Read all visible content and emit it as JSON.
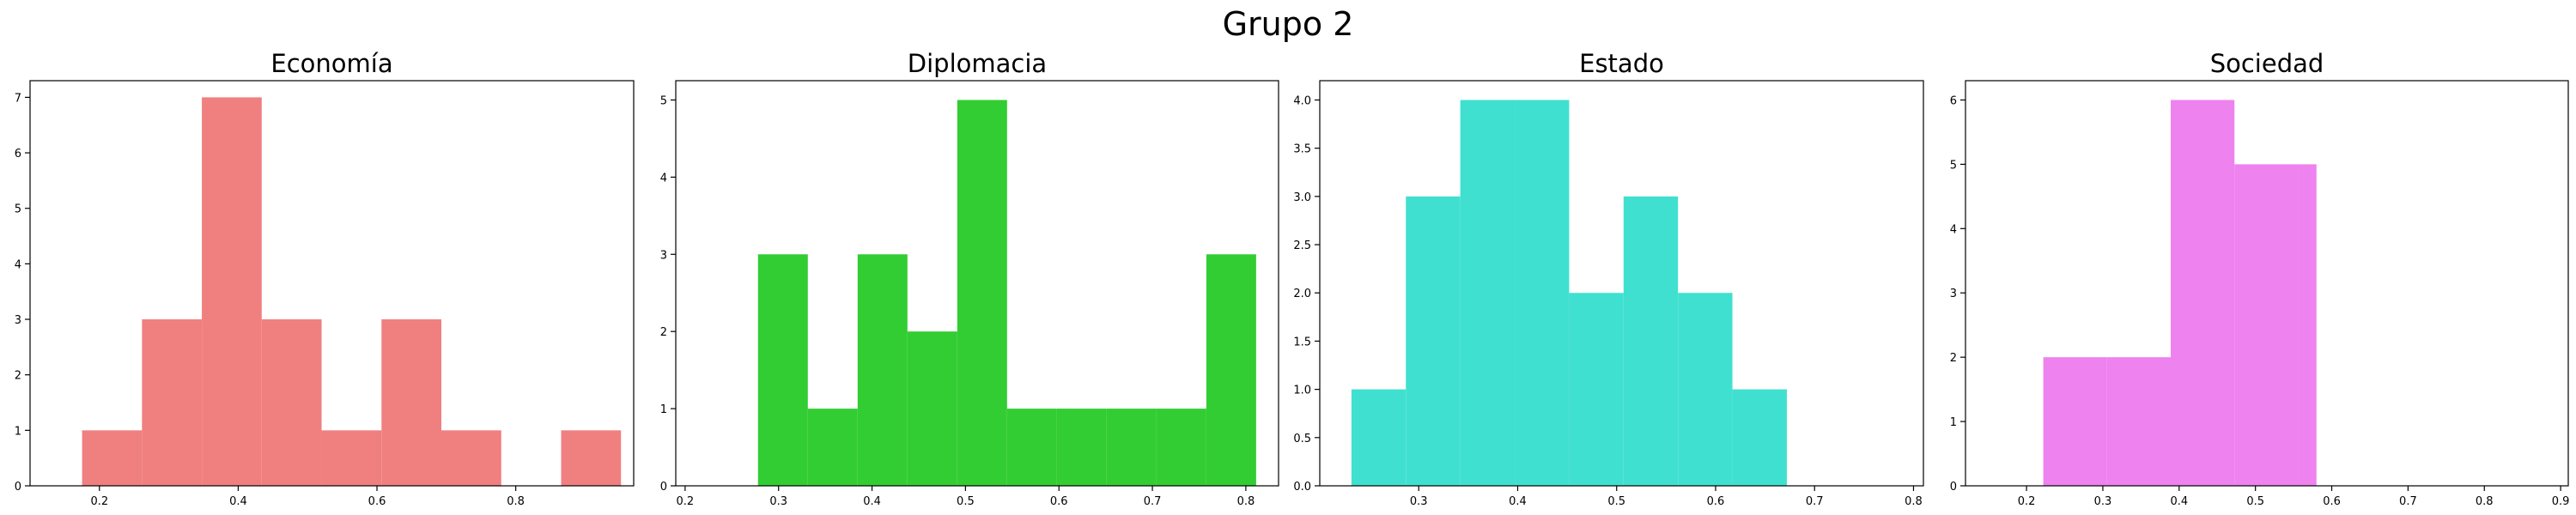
{
  "title": "Grupo 2",
  "chart_data": [
    {
      "type": "bar",
      "subtype": "histogram",
      "title": "Economía",
      "color": "#f08080",
      "xlim": [
        0.1,
        0.97
      ],
      "ylim": [
        0,
        7.3
      ],
      "xticks": [
        0.2,
        0.4,
        0.6,
        0.8
      ],
      "xtick_labels": [
        "0.2",
        "0.4",
        "0.6",
        "0.8"
      ],
      "yticks": [
        0,
        1,
        2,
        3,
        4,
        5,
        6,
        7
      ],
      "ytick_labels": [
        "0",
        "1",
        "2",
        "3",
        "4",
        "5",
        "6",
        "7"
      ],
      "bin_edges": [
        0.175,
        0.2613,
        0.3476,
        0.4339,
        0.5202,
        0.6065,
        0.6928,
        0.7791,
        0.8654,
        0.9517
      ],
      "values": [
        1,
        3,
        7,
        3,
        1,
        3,
        1,
        0,
        1
      ]
    },
    {
      "type": "bar",
      "subtype": "histogram",
      "title": "Diplomacia",
      "color": "#32cd32",
      "xlim": [
        0.19,
        0.835
      ],
      "ylim": [
        0,
        5.25
      ],
      "xticks": [
        0.2,
        0.3,
        0.4,
        0.5,
        0.6,
        0.7,
        0.8
      ],
      "xtick_labels": [
        "0.2",
        "0.3",
        "0.4",
        "0.5",
        "0.6",
        "0.7",
        "0.8"
      ],
      "yticks": [
        0,
        1,
        2,
        3,
        4,
        5
      ],
      "ytick_labels": [
        "0",
        "1",
        "2",
        "3",
        "4",
        "5"
      ],
      "bin_edges": [
        0.278,
        0.3313,
        0.3846,
        0.4379,
        0.4912,
        0.5445,
        0.5978,
        0.6511,
        0.7044,
        0.7577,
        0.811
      ],
      "values": [
        3,
        1,
        3,
        2,
        5,
        1,
        1,
        1,
        1,
        3
      ]
    },
    {
      "type": "bar",
      "subtype": "histogram",
      "title": "Estado",
      "color": "#40e0d0",
      "xlim": [
        0.2,
        0.81
      ],
      "ylim": [
        0,
        4.2
      ],
      "xticks": [
        0.3,
        0.4,
        0.5,
        0.6,
        0.7,
        0.8
      ],
      "xtick_labels": [
        "0.3",
        "0.4",
        "0.5",
        "0.6",
        "0.7",
        "0.8"
      ],
      "yticks": [
        0,
        0.5,
        1.0,
        1.5,
        2.0,
        2.5,
        3.0,
        3.5,
        4.0
      ],
      "ytick_labels": [
        "0.0",
        "0.5",
        "1.0",
        "1.5",
        "2.0",
        "2.5",
        "3.0",
        "3.5",
        "4.0"
      ],
      "bin_edges": [
        0.232,
        0.287,
        0.342,
        0.397,
        0.452,
        0.507,
        0.562,
        0.617,
        0.672
      ],
      "values": [
        1,
        3,
        4,
        4,
        2,
        3,
        2,
        1
      ]
    },
    {
      "type": "bar",
      "subtype": "histogram",
      "title": "Sociedad",
      "color": "#ee82ee",
      "xlim": [
        0.12,
        0.91
      ],
      "ylim": [
        0,
        6.3
      ],
      "xticks": [
        0.2,
        0.3,
        0.4,
        0.5,
        0.6,
        0.7,
        0.8,
        0.9
      ],
      "xtick_labels": [
        "0.2",
        "0.3",
        "0.4",
        "0.5",
        "0.6",
        "0.7",
        "0.8",
        "0.9"
      ],
      "yticks": [
        0,
        1,
        2,
        3,
        4,
        5,
        6
      ],
      "ytick_labels": [
        "0",
        "1",
        "2",
        "3",
        "4",
        "5",
        "6"
      ],
      "bin_edges": [
        0.222,
        0.3055,
        0.389,
        0.4725,
        0.556,
        0.58
      ],
      "values": [
        2,
        2,
        6,
        5,
        5
      ]
    }
  ]
}
